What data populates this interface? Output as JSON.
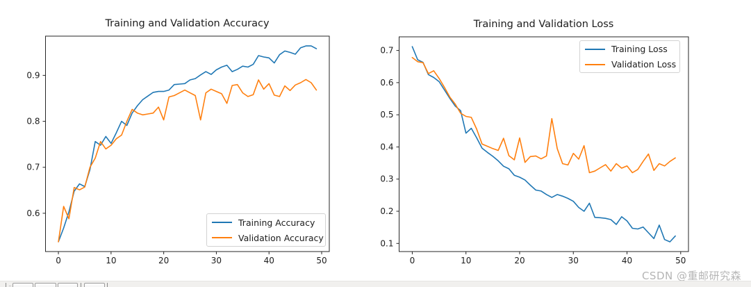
{
  "watermark_text": "CSDN @重邮研究森",
  "colors": {
    "train": "#1f77b4",
    "val": "#ff7f0e",
    "axis": "#262626",
    "tick_label": "#1c1c1c",
    "watermark": "#b5b5b5"
  },
  "chart_data": [
    {
      "type": "line",
      "title": "Training and Validation Accuracy",
      "xlabel": "",
      "ylabel": "",
      "grid": false,
      "legend_position": "lower right",
      "xticks": [
        0,
        10,
        20,
        30,
        40,
        50
      ],
      "yticks": [
        0.6,
        0.7,
        0.8,
        0.9
      ],
      "xlim": [
        -2.45,
        51.45
      ],
      "ylim": [
        0.5167,
        0.9853
      ],
      "x": [
        0,
        1,
        2,
        3,
        4,
        5,
        6,
        7,
        8,
        9,
        10,
        11,
        12,
        13,
        14,
        15,
        16,
        17,
        18,
        19,
        20,
        21,
        22,
        23,
        24,
        25,
        26,
        27,
        28,
        29,
        30,
        31,
        32,
        33,
        34,
        35,
        36,
        37,
        38,
        39,
        40,
        41,
        42,
        43,
        44,
        45,
        46,
        47,
        48,
        49
      ],
      "series": [
        {
          "name": "Training Accuracy",
          "color": "#1f77b4",
          "values": [
            0.538,
            0.568,
            0.603,
            0.648,
            0.664,
            0.658,
            0.695,
            0.756,
            0.748,
            0.767,
            0.752,
            0.775,
            0.8,
            0.791,
            0.818,
            0.834,
            0.847,
            0.855,
            0.863,
            0.865,
            0.865,
            0.868,
            0.88,
            0.881,
            0.882,
            0.89,
            0.893,
            0.901,
            0.908,
            0.902,
            0.912,
            0.918,
            0.922,
            0.908,
            0.913,
            0.92,
            0.918,
            0.924,
            0.943,
            0.94,
            0.938,
            0.927,
            0.945,
            0.953,
            0.95,
            0.946,
            0.96,
            0.964,
            0.964,
            0.958
          ]
        },
        {
          "name": "Validation Accuracy",
          "color": "#ff7f0e",
          "values": [
            0.538,
            0.615,
            0.588,
            0.656,
            0.651,
            0.657,
            0.7,
            0.72,
            0.756,
            0.74,
            0.748,
            0.762,
            0.77,
            0.8,
            0.826,
            0.818,
            0.814,
            0.816,
            0.818,
            0.831,
            0.803,
            0.853,
            0.856,
            0.862,
            0.868,
            0.862,
            0.856,
            0.803,
            0.862,
            0.87,
            0.865,
            0.86,
            0.839,
            0.878,
            0.88,
            0.862,
            0.854,
            0.858,
            0.89,
            0.87,
            0.882,
            0.857,
            0.854,
            0.877,
            0.867,
            0.879,
            0.884,
            0.891,
            0.884,
            0.868
          ]
        }
      ]
    },
    {
      "type": "line",
      "title": "Training and Validation Loss",
      "xlabel": "",
      "ylabel": "",
      "grid": false,
      "legend_position": "upper right",
      "xticks": [
        0,
        10,
        20,
        30,
        40,
        50
      ],
      "yticks": [
        0.1,
        0.2,
        0.3,
        0.4,
        0.5,
        0.6,
        0.7
      ],
      "xlim": [
        -2.45,
        51.45
      ],
      "ylim": [
        0.0747,
        0.7424
      ],
      "x": [
        0,
        1,
        2,
        3,
        4,
        5,
        6,
        7,
        8,
        9,
        10,
        11,
        12,
        13,
        14,
        15,
        16,
        17,
        18,
        19,
        20,
        21,
        22,
        23,
        24,
        25,
        26,
        27,
        28,
        29,
        30,
        31,
        32,
        33,
        34,
        35,
        36,
        37,
        38,
        39,
        40,
        41,
        42,
        43,
        44,
        45,
        46,
        47,
        48,
        49
      ],
      "series": [
        {
          "name": "Training Loss",
          "color": "#1f77b4",
          "values": [
            0.712,
            0.671,
            0.663,
            0.625,
            0.616,
            0.603,
            0.577,
            0.551,
            0.527,
            0.513,
            0.443,
            0.458,
            0.428,
            0.396,
            0.383,
            0.371,
            0.357,
            0.34,
            0.332,
            0.312,
            0.306,
            0.297,
            0.281,
            0.266,
            0.263,
            0.252,
            0.243,
            0.252,
            0.247,
            0.24,
            0.231,
            0.212,
            0.2,
            0.225,
            0.181,
            0.18,
            0.178,
            0.174,
            0.159,
            0.183,
            0.17,
            0.147,
            0.145,
            0.151,
            0.133,
            0.115,
            0.157,
            0.112,
            0.105,
            0.123
          ]
        },
        {
          "name": "Validation Loss",
          "color": "#ff7f0e",
          "values": [
            0.678,
            0.665,
            0.662,
            0.628,
            0.637,
            0.613,
            0.585,
            0.555,
            0.533,
            0.505,
            0.495,
            0.492,
            0.455,
            0.409,
            0.402,
            0.395,
            0.389,
            0.427,
            0.373,
            0.36,
            0.428,
            0.352,
            0.37,
            0.372,
            0.363,
            0.372,
            0.488,
            0.395,
            0.348,
            0.344,
            0.38,
            0.362,
            0.404,
            0.32,
            0.325,
            0.335,
            0.345,
            0.325,
            0.348,
            0.334,
            0.341,
            0.32,
            0.33,
            0.355,
            0.378,
            0.327,
            0.348,
            0.341,
            0.355,
            0.366
          ]
        }
      ]
    }
  ]
}
